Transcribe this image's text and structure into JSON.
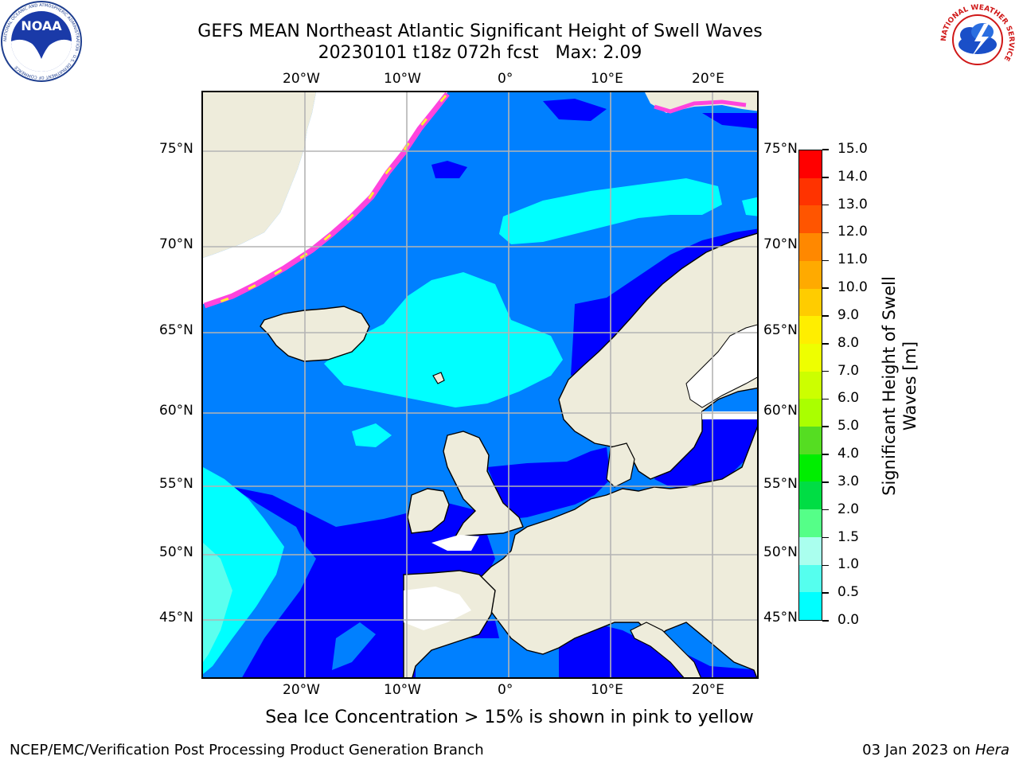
{
  "header": {
    "title_line1": "GEFS MEAN Northeast Atlantic Significant Height of Swell Waves",
    "title_line2": "20230101 t18z 072h fcst   Max: 2.09"
  },
  "logos": {
    "left": {
      "name": "noaa-logo",
      "text": "NOAA",
      "ring_text": "NATIONAL OCEANIC AND ATMOSPHERIC ADMINISTRATION · U.S. DEPARTMENT OF COMMERCE"
    },
    "right": {
      "name": "nws-logo",
      "ring_text": "NATIONAL WEATHER SERVICE"
    }
  },
  "map": {
    "lon_labels": [
      "20°W",
      "10°W",
      "0°",
      "10°E",
      "20°E"
    ],
    "lat_labels": [
      "75°N",
      "70°N",
      "65°N",
      "60°N",
      "55°N",
      "50°N",
      "45°N"
    ],
    "colors": {
      "land": "#eeecdb",
      "ice_free_white": "#ffffff",
      "sea_0_05": "#0000ff",
      "sea_05_10": "#0080ff",
      "sea_10_15": "#00ffff",
      "sea_15_20": "#5cffee",
      "ice_pink": "#ff44dd",
      "ice_yellow": "#ffee33",
      "grid": "#b4b4b4"
    }
  },
  "colorbar": {
    "title": "Significant Height of Swell Waves [m]",
    "title_line1": "Significant Height of Swell",
    "title_line2": "Waves [m]",
    "labels": [
      "15.0",
      "14.0",
      "13.0",
      "12.0",
      "11.0",
      "10.0",
      "9.0",
      "8.0",
      "7.0",
      "6.0",
      "5.0",
      "4.0",
      "3.0",
      "2.0",
      "1.5",
      "1.0",
      "0.5",
      "0.0"
    ],
    "colors": [
      "#ff0000",
      "#ff3300",
      "#ff5500",
      "#ff8800",
      "#ffaa00",
      "#ffcc00",
      "#ffee00",
      "#eeff00",
      "#ccff00",
      "#aaff00",
      "#55dd22",
      "#00ee00",
      "#00dd44",
      "#55ff88",
      "#aaffee",
      "#55ffee",
      "#00ffff",
      "#0080ff",
      "#0000ff"
    ]
  },
  "footnote": "Sea Ice Concentration > 15% is shown in pink to yellow",
  "footer": {
    "credit": "NCEP/EMC/Verification Post Processing Product Generation Branch",
    "date_prefix": "03 Jan 2023 on ",
    "date_machine": "Hera"
  }
}
